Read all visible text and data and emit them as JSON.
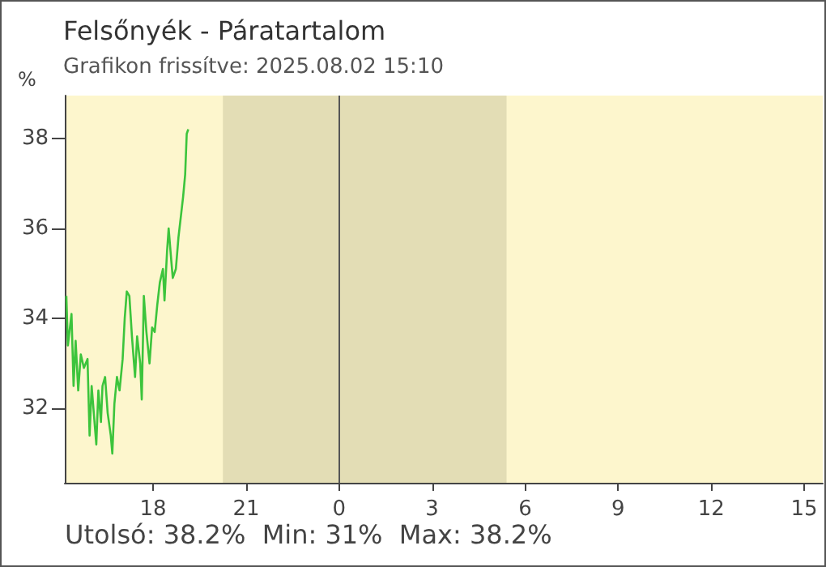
{
  "chart_data": {
    "type": "line",
    "title": "Felsőnyék - Páratartalom",
    "subtitle": "Grafikon frissítve: 2025.08.02 15:10",
    "ylabel": "%",
    "annotations": [
      "Utolsó: 38.2%  Min: 31%  Max: 38.2%"
    ],
    "x": [
      "2025-08-01T15:12",
      "2025-08-01T15:15",
      "2025-08-01T15:22",
      "2025-08-01T15:26",
      "2025-08-01T15:30",
      "2025-08-01T15:35",
      "2025-08-01T15:40",
      "2025-08-01T15:46",
      "2025-08-01T15:53",
      "2025-08-01T15:57",
      "2025-08-01T16:01",
      "2025-08-01T16:10",
      "2025-08-01T16:14",
      "2025-08-01T16:19",
      "2025-08-01T16:22",
      "2025-08-01T16:27",
      "2025-08-01T16:32",
      "2025-08-01T16:38",
      "2025-08-01T16:41",
      "2025-08-01T16:45",
      "2025-08-01T16:50",
      "2025-08-01T16:55",
      "2025-08-01T17:01",
      "2025-08-01T17:05",
      "2025-08-01T17:09",
      "2025-08-01T17:14",
      "2025-08-01T17:19",
      "2025-08-01T17:25",
      "2025-08-01T17:29",
      "2025-08-01T17:35",
      "2025-08-01T17:38",
      "2025-08-01T17:42",
      "2025-08-01T17:47",
      "2025-08-01T17:53",
      "2025-08-01T17:58",
      "2025-08-01T18:03",
      "2025-08-01T18:08",
      "2025-08-01T18:13",
      "2025-08-01T18:19",
      "2025-08-01T18:22",
      "2025-08-01T18:27",
      "2025-08-01T18:30",
      "2025-08-01T18:35",
      "2025-08-01T18:38",
      "2025-08-01T18:44",
      "2025-08-01T18:49",
      "2025-08-01T18:54",
      "2025-08-01T18:58",
      "2025-08-01T19:02",
      "2025-08-01T19:05",
      "2025-08-01T19:08"
    ],
    "series": [
      {
        "color": "#3cc43c",
        "values": [
          34.5,
          33.4,
          34.1,
          32.5,
          33.5,
          32.4,
          33.2,
          32.9,
          33.1,
          31.4,
          32.5,
          31.2,
          32.4,
          31.7,
          32.5,
          32.7,
          31.9,
          31.4,
          31.0,
          32.1,
          32.7,
          32.4,
          33.1,
          34.0,
          34.6,
          34.5,
          33.6,
          32.7,
          33.6,
          33.0,
          32.2,
          34.5,
          33.7,
          33.0,
          33.8,
          33.7,
          34.3,
          34.8,
          35.1,
          34.4,
          35.5,
          36.0,
          35.3,
          34.9,
          35.1,
          35.8,
          36.3,
          36.7,
          37.2,
          38.1,
          38.2
        ]
      }
    ],
    "xlim": [
      "2025-08-01T15:09",
      "2025-08-02T15:36"
    ],
    "xticks": [
      {
        "value": "2025-08-01T18:00",
        "label": "18"
      },
      {
        "value": "2025-08-01T21:00",
        "label": "21"
      },
      {
        "value": "2025-08-02T00:00",
        "label": "0"
      },
      {
        "value": "2025-08-02T03:00",
        "label": "3"
      },
      {
        "value": "2025-08-02T06:00",
        "label": "6"
      },
      {
        "value": "2025-08-02T09:00",
        "label": "9"
      },
      {
        "value": "2025-08-02T12:00",
        "label": "12"
      },
      {
        "value": "2025-08-02T15:00",
        "label": "15"
      }
    ],
    "ylim": [
      30.35,
      38.95
    ],
    "yticks": [
      32,
      34,
      36,
      38
    ],
    "bands": [
      {
        "axis": "x",
        "from": "2025-08-01T20:15",
        "to": "2025-08-02T05:24",
        "color": "#e3ddb5"
      }
    ],
    "ref_lines": [
      {
        "axis": "x",
        "value": "2025-08-02T00:00",
        "color": "#555555"
      }
    ],
    "grid": false,
    "marker": "none",
    "line_style": "solid"
  }
}
